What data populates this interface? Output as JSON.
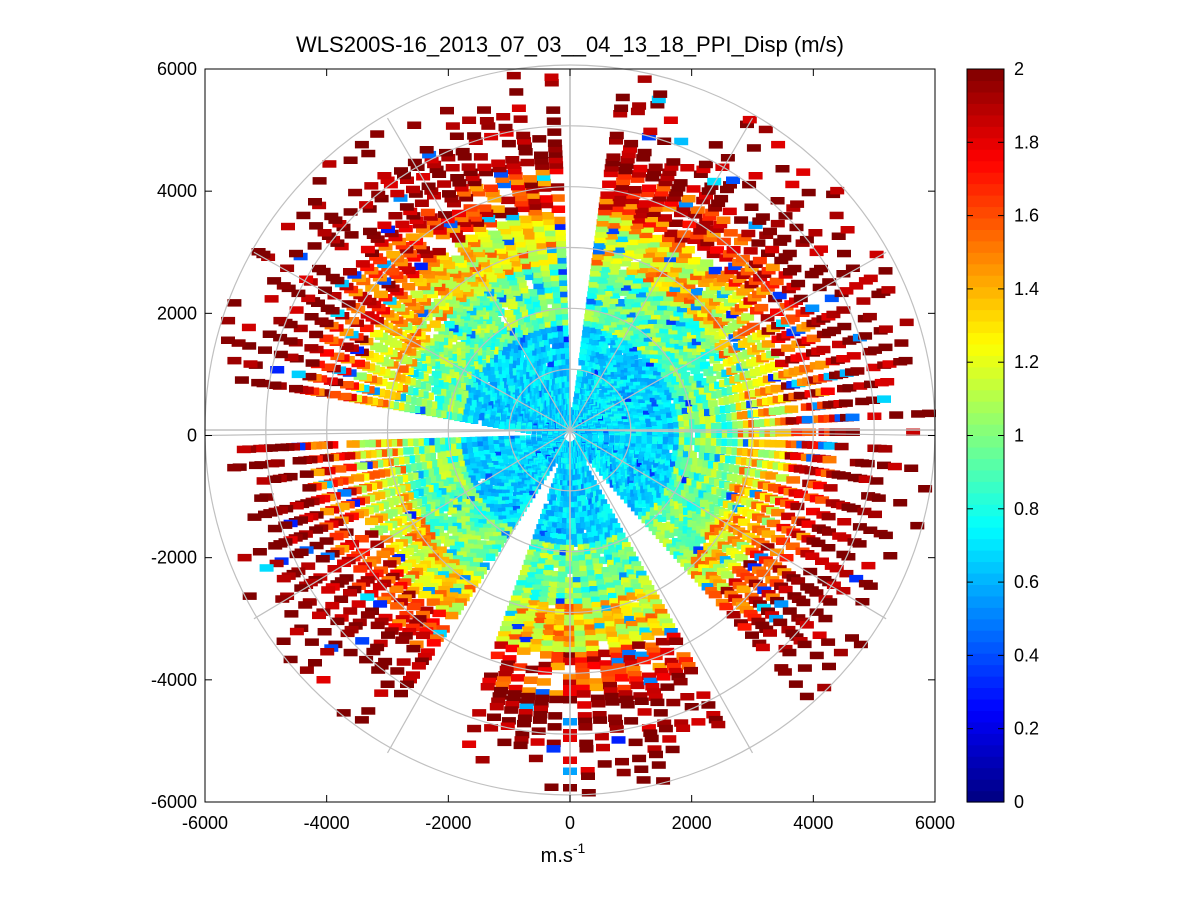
{
  "chart_data": {
    "type": "heatmap",
    "subtype": "polar-ppi",
    "title": "WLS200S-16_2013_07_03__04_13_18_PPI_Disp (m/s)",
    "xlabel": "m.s",
    "xlabel_superscript": "-1",
    "ylabel": "",
    "xlim": [
      -6000,
      6000
    ],
    "ylim": [
      -6000,
      6000
    ],
    "xticks": [
      -6000,
      -4000,
      -2000,
      0,
      2000,
      4000,
      6000
    ],
    "yticks": [
      6000,
      4000,
      2000,
      0,
      -2000,
      -4000,
      -6000
    ],
    "xtick_labels": [
      "-6000",
      "-4000",
      "-2000",
      "0",
      "2000",
      "4000",
      "6000"
    ],
    "ytick_labels": [
      "6000",
      "4000",
      "2000",
      "0",
      "-2000",
      "-4000",
      "-6000"
    ],
    "polar_grid_radii": [
      1000,
      2000,
      3000,
      4000,
      5000,
      6000
    ],
    "polar_grid_angles_deg": [
      0,
      30,
      60,
      90,
      120,
      150,
      180,
      210,
      240,
      270,
      300,
      330
    ],
    "colorbar": {
      "colormap": "jet",
      "range": [
        0,
        2
      ],
      "ticks": [
        0,
        0.2,
        0.4,
        0.6,
        0.8,
        1,
        1.2,
        1.4,
        1.6,
        1.8,
        2
      ],
      "tick_labels": [
        "0",
        "0.2",
        "0.4",
        "0.6",
        "0.8",
        "1",
        "1.2",
        "1.4",
        "1.6",
        "1.8",
        "2"
      ]
    },
    "data_description_bands": [
      {
        "range_m": [
          0,
          2000
        ],
        "typical_value": 0.6
      },
      {
        "range_m": [
          2000,
          3200
        ],
        "typical_value": 1.0
      },
      {
        "range_m": [
          3200,
          4200
        ],
        "typical_value": 1.6
      },
      {
        "range_m": [
          4200,
          6000
        ],
        "typical_value": 2.0
      }
    ]
  }
}
